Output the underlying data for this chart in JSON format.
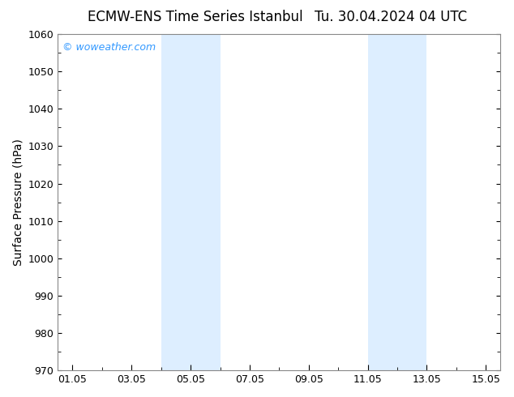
{
  "title_left": "ECMW-ENS Time Series Istanbul",
  "title_right": "Tu. 30.04.2024 04 UTC",
  "ylabel": "Surface Pressure (hPa)",
  "ylim": [
    970,
    1060
  ],
  "yticks": [
    970,
    980,
    990,
    1000,
    1010,
    1020,
    1030,
    1040,
    1050,
    1060
  ],
  "xtick_labels": [
    "01.05",
    "03.05",
    "05.05",
    "07.05",
    "09.05",
    "11.05",
    "13.05",
    "15.05"
  ],
  "xtick_positions": [
    1,
    3,
    5,
    7,
    9,
    11,
    13,
    15
  ],
  "xlim": [
    0.5,
    15.5
  ],
  "shaded_bands": [
    {
      "xstart": 4,
      "xend": 6
    },
    {
      "xstart": 11,
      "xend": 13
    }
  ],
  "shade_color": "#ddeeff",
  "background_color": "#ffffff",
  "plot_bg_color": "#ffffff",
  "border_color": "#888888",
  "watermark_text": "© woweather.com",
  "watermark_color": "#3399ff",
  "title_fontsize": 12,
  "axis_fontsize": 10,
  "tick_fontsize": 9,
  "watermark_fontsize": 9
}
